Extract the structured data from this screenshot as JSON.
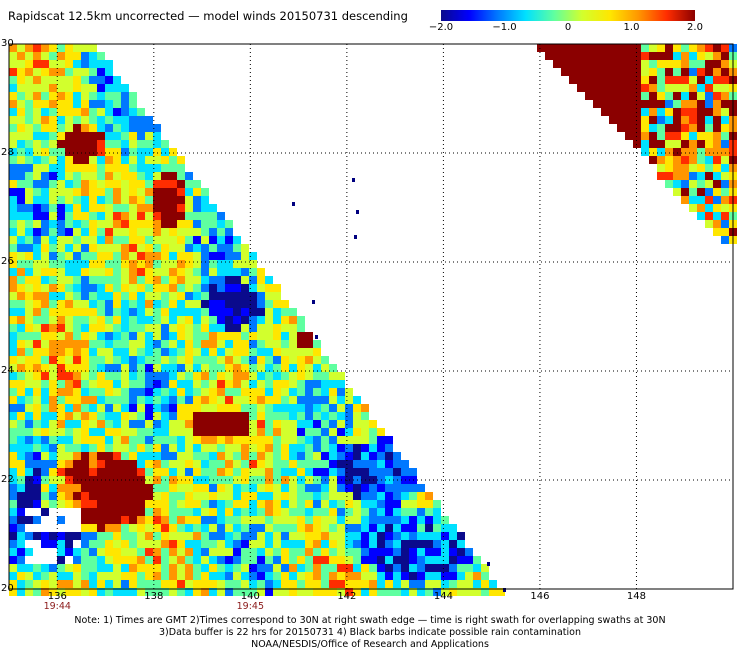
{
  "title": "Rapidscat 12.5km uncorrected — model winds 20150731 descending",
  "colorbar": {
    "ticks": [
      {
        "label": "−2.0",
        "value": -2.0
      },
      {
        "label": "−1.0",
        "value": -1.0
      },
      {
        "label": "0",
        "value": 0
      },
      {
        "label": "1.0",
        "value": 1.0
      },
      {
        "label": "2.0",
        "value": 2.0
      }
    ],
    "colors": [
      "#0a0a8c",
      "#0000ff",
      "#0078ff",
      "#00e1ff",
      "#5fffa0",
      "#d2ff2d",
      "#ffe600",
      "#ff9600",
      "#ff2d00",
      "#8b0000"
    ]
  },
  "map": {
    "x_ticks": [
      {
        "label": "136",
        "lon": 136
      },
      {
        "label": "138",
        "lon": 138
      },
      {
        "label": "140",
        "lon": 140
      },
      {
        "label": "142",
        "lon": 142
      },
      {
        "label": "144",
        "lon": 144
      },
      {
        "label": "146",
        "lon": 146
      },
      {
        "label": "148",
        "lon": 148
      }
    ],
    "y_ticks": [
      {
        "label": "30",
        "lat": 30
      },
      {
        "label": "28",
        "lat": 28
      },
      {
        "label": "26",
        "lat": 26
      },
      {
        "label": "24",
        "lat": 24
      },
      {
        "label": "22",
        "lat": 22
      },
      {
        "label": "20",
        "lat": 20
      }
    ],
    "lon_range": [
      135,
      150
    ],
    "lat_range": [
      20,
      30
    ],
    "grid": "dotted",
    "land_color": "#00007f"
  },
  "times": [
    {
      "label": "19:44",
      "lon": 136
    },
    {
      "label": "19:45",
      "lon": 140
    }
  ],
  "notes": [
    "Note: 1) Times are GMT 2)Times correspond to 30N at right swath edge — time is right swath for overlapping swaths at 30N",
    "3)Data buffer is 22 hrs for 20150731 4) Black barbs indicate possible rain contamination",
    "NOAA/NESDIS/Office of Research and Applications"
  ]
}
